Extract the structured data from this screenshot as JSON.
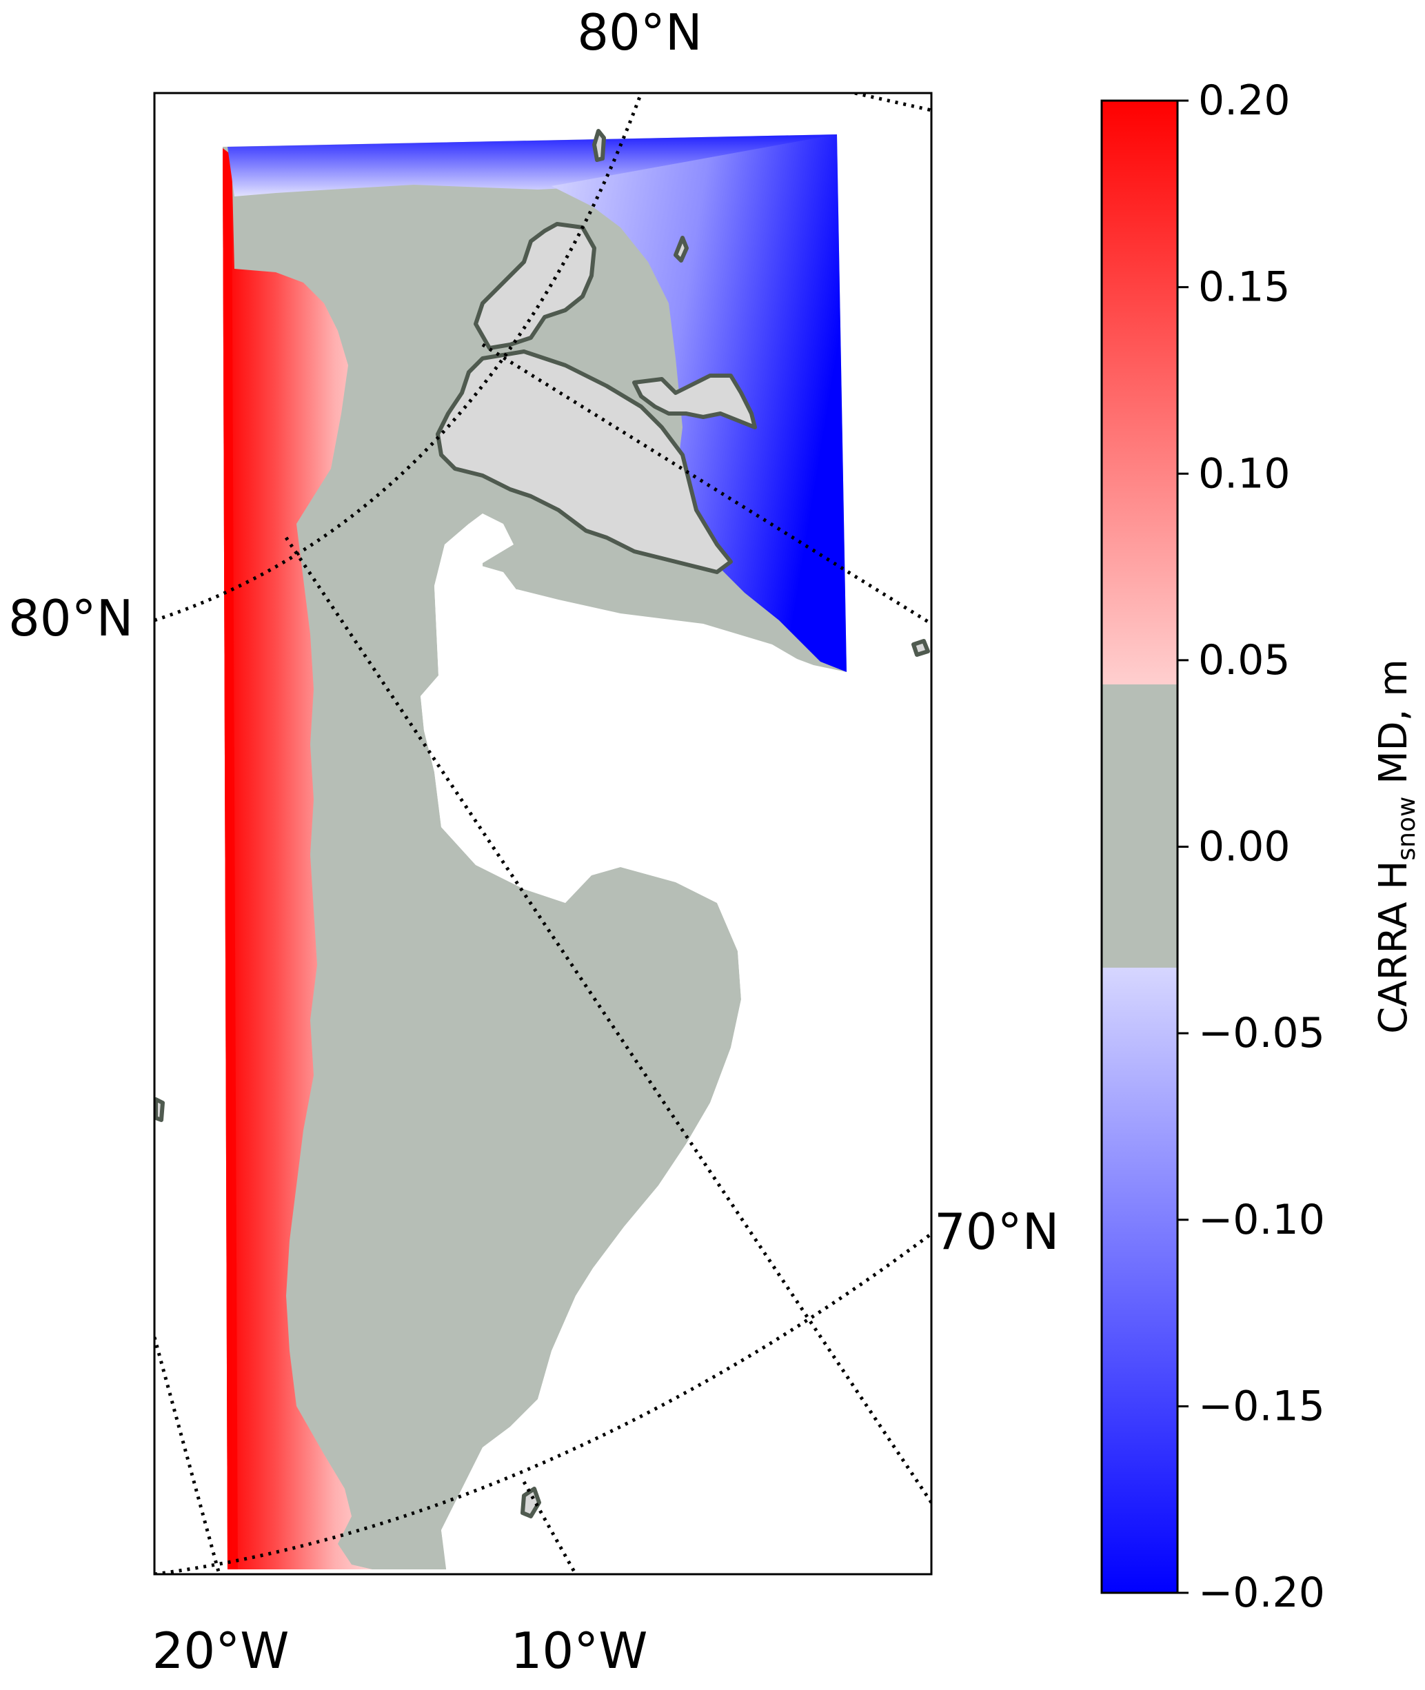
{
  "map": {
    "labels": {
      "lat_top": "80°N",
      "lat_left": "80°N",
      "lat_right": "70°N",
      "lon_left": "20°W",
      "lon_mid": "10°W"
    },
    "colors": {
      "positive": "#ff0000",
      "negative": "#0000ff",
      "near_zero": "#b6beb6",
      "land": "#d9d9d9",
      "coastline": "#4f5a4f",
      "graticule": "#000000"
    }
  },
  "colorbar": {
    "label_main": "CARRA H",
    "label_sub": "snow",
    "label_tail": " MD, m",
    "min": -0.2,
    "max": 0.2,
    "neutral_range": [
      -0.033,
      0.044
    ],
    "ticks": [
      "0.20",
      "0.15",
      "0.10",
      "0.05",
      "0.00",
      "−0.05",
      "−0.10",
      "−0.15",
      "−0.20"
    ],
    "tick_values": [
      0.2,
      0.15,
      0.1,
      0.05,
      0.0,
      -0.05,
      -0.1,
      -0.15,
      -0.2
    ]
  }
}
